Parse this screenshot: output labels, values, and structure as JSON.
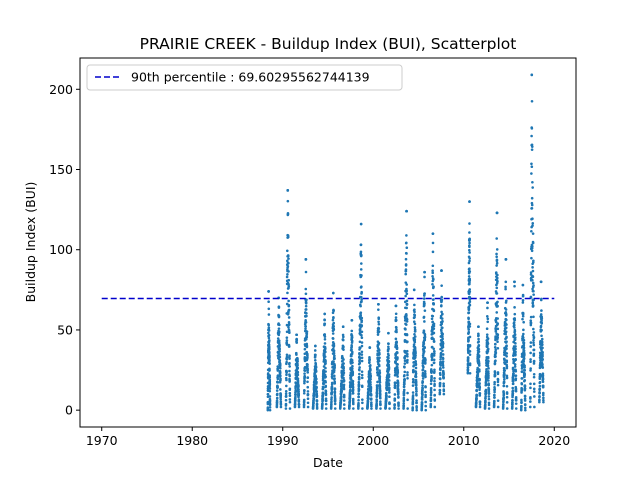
{
  "chart_data": {
    "type": "scatter",
    "title": "PRAIRIE CREEK - Buildup Index (BUI), Scatterplot",
    "xlabel": "Date",
    "ylabel": "Buildup Index (BUI)",
    "xlim": [
      1967.6,
      2022.4
    ],
    "ylim": [
      -10.5,
      219.5
    ],
    "x_ticks": [
      1970,
      1980,
      1990,
      2000,
      2010,
      2020
    ],
    "x_tick_labels": [
      "1970",
      "1980",
      "1990",
      "2000",
      "2010",
      "2020"
    ],
    "y_ticks": [
      0,
      50,
      100,
      150,
      200
    ],
    "y_tick_labels": [
      "0",
      "50",
      "100",
      "150",
      "200"
    ],
    "grid": false,
    "legend_position": "upper left",
    "percentile_line": {
      "label": "90th percentile : 69.60295562744139",
      "value": 69.60295562744139,
      "x_start": 1970,
      "x_end": 2020,
      "color": "#0000cc",
      "style": "dashed"
    },
    "point_color": "#1f77b4",
    "seasons": [
      {
        "year": 1988,
        "start": 1988.35,
        "end": 1988.6,
        "peak": 74,
        "min": 0
      },
      {
        "year": 1989,
        "start": 1989.35,
        "end": 1989.8,
        "peak": 70,
        "min": 2
      },
      {
        "year": 1990,
        "start": 1990.35,
        "end": 1990.8,
        "peak": 137,
        "min": 1
      },
      {
        "year": 1991,
        "start": 1991.35,
        "end": 1991.8,
        "peak": 47,
        "min": 2
      },
      {
        "year": 1992,
        "start": 1992.35,
        "end": 1992.8,
        "peak": 94,
        "min": 2
      },
      {
        "year": 1993,
        "start": 1993.35,
        "end": 1993.8,
        "peak": 40,
        "min": 1
      },
      {
        "year": 1994,
        "start": 1994.35,
        "end": 1994.8,
        "peak": 60,
        "min": 1
      },
      {
        "year": 1995,
        "start": 1995.35,
        "end": 1995.8,
        "peak": 73,
        "min": 1
      },
      {
        "year": 1996,
        "start": 1996.35,
        "end": 1996.8,
        "peak": 52,
        "min": 1
      },
      {
        "year": 1997,
        "start": 1997.35,
        "end": 1997.8,
        "peak": 56,
        "min": 1
      },
      {
        "year": 1998,
        "start": 1998.35,
        "end": 1998.8,
        "peak": 116,
        "min": 1
      },
      {
        "year": 1999,
        "start": 1999.35,
        "end": 1999.8,
        "peak": 39,
        "min": 1
      },
      {
        "year": 2000,
        "start": 2000.35,
        "end": 2000.8,
        "peak": 66,
        "min": 1
      },
      {
        "year": 2001,
        "start": 2001.35,
        "end": 2001.8,
        "peak": 48,
        "min": 1
      },
      {
        "year": 2002,
        "start": 2002.35,
        "end": 2002.8,
        "peak": 65,
        "min": 1
      },
      {
        "year": 2003,
        "start": 2003.35,
        "end": 2003.8,
        "peak": 124,
        "min": 1
      },
      {
        "year": 2004,
        "start": 2004.35,
        "end": 2004.8,
        "peak": 75,
        "min": 0
      },
      {
        "year": 2005,
        "start": 2005.35,
        "end": 2005.8,
        "peak": 86,
        "min": 0
      },
      {
        "year": 2006,
        "start": 2006.35,
        "end": 2006.8,
        "peak": 110,
        "min": 2
      },
      {
        "year": 2007,
        "start": 2007.35,
        "end": 2007.8,
        "peak": 87,
        "min": 10
      },
      {
        "year": 2010,
        "start": 2010.45,
        "end": 2010.7,
        "peak": 130,
        "min": 23
      },
      {
        "year": 2011,
        "start": 2011.35,
        "end": 2011.8,
        "peak": 52,
        "min": 2
      },
      {
        "year": 2012,
        "start": 2012.35,
        "end": 2012.8,
        "peak": 67,
        "min": 1
      },
      {
        "year": 2013,
        "start": 2013.35,
        "end": 2013.8,
        "peak": 123,
        "min": 2
      },
      {
        "year": 2014,
        "start": 2014.35,
        "end": 2014.8,
        "peak": 94,
        "min": 1
      },
      {
        "year": 2015,
        "start": 2015.35,
        "end": 2015.8,
        "peak": 80,
        "min": 1
      },
      {
        "year": 2016,
        "start": 2016.35,
        "end": 2016.8,
        "peak": 78,
        "min": 0
      },
      {
        "year": 2017,
        "start": 2017.35,
        "end": 2017.8,
        "peak": 209,
        "min": 2
      },
      {
        "year": 2018,
        "start": 2018.35,
        "end": 2018.8,
        "peak": 80,
        "min": 5
      }
    ]
  }
}
